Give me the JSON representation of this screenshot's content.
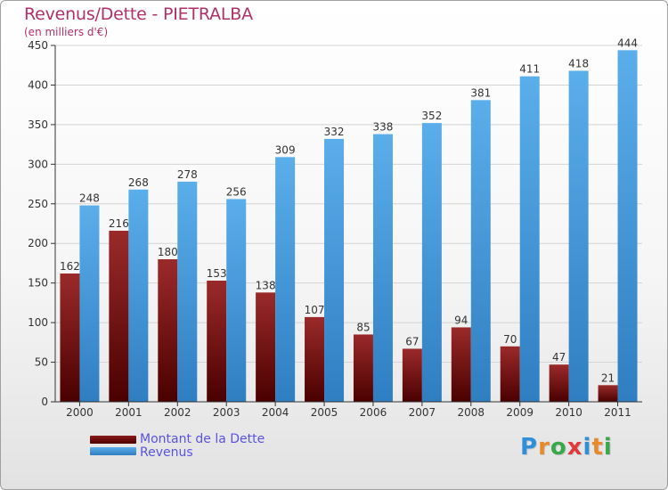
{
  "title": "Revenus/Dette - PIETRALBA",
  "subtitle": "(en milliers d'€)",
  "brand": {
    "letters": [
      "P",
      "r",
      "o",
      "x",
      "i",
      "t",
      "i"
    ],
    "colors": [
      "#2f8fd8",
      "#e8892a",
      "#3aa84a",
      "#e03a3a",
      "#2f8fd8",
      "#e8892a",
      "#3aa84a"
    ]
  },
  "colors": {
    "debt": "#8b1a1a",
    "debt_dark": "#4e0000",
    "revenue": "#4da3e6",
    "revenue_dark": "#2f7fc4",
    "title": "#b0306a",
    "legend_text": "#5b52e0"
  },
  "legend": [
    {
      "label": "Montant de la Dette",
      "series": "debt"
    },
    {
      "label": "Revenus",
      "series": "revenue"
    }
  ],
  "chart_data": {
    "type": "bar",
    "title": "Revenus/Dette - PIETRALBA",
    "subtitle": "(en milliers d'€)",
    "categories": [
      "2000",
      "2001",
      "2002",
      "2003",
      "2004",
      "2005",
      "2006",
      "2007",
      "2008",
      "2009",
      "2010",
      "2011"
    ],
    "series": [
      {
        "name": "Montant de la Dette",
        "key": "debt",
        "values": [
          162,
          216,
          180,
          153,
          138,
          107,
          85,
          67,
          94,
          70,
          47,
          21
        ]
      },
      {
        "name": "Revenus",
        "key": "revenue",
        "values": [
          248,
          268,
          278,
          256,
          309,
          332,
          338,
          352,
          381,
          411,
          418,
          444
        ]
      }
    ],
    "ylim": [
      0,
      450
    ],
    "yticks": [
      0,
      50,
      100,
      150,
      200,
      250,
      300,
      350,
      400,
      450
    ],
    "grid": true,
    "legend_position": "bottom-left"
  }
}
